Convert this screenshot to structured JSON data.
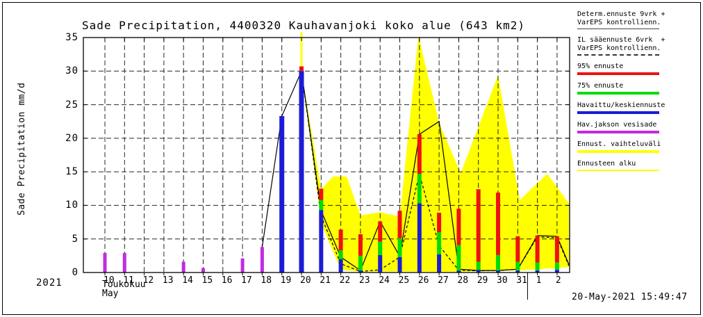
{
  "page": {
    "timestamp": "20-May-2021 15:49:47"
  },
  "colors": {
    "red_95": "#ee1111",
    "green_75": "#00dd00",
    "blue_observed": "#1c1cd6",
    "magenta_rain": "#c12ce0",
    "yellow_range": "#ffff00",
    "line_black": "#000000"
  },
  "chart_data": {
    "type": "composite: bar + line + area (hydrological precipitation forecast)",
    "title": "Sade Precipitation, 4400320 Kauhavanjoki koko alue (643 km2)",
    "ylabel": "Sade Precipitation mm/d",
    "ylim": [
      0,
      35
    ],
    "yticks": [
      0,
      5,
      10,
      15,
      20,
      25,
      30,
      35
    ],
    "grid": "dashed, every day vertical / every 5 mm horizontal",
    "x": {
      "year": "2021",
      "month_fi": "Toukokuu",
      "month_en": "May",
      "day_labels": [
        "10",
        "11",
        "12",
        "13",
        "14",
        "15",
        "16",
        "17",
        "18",
        "19",
        "20",
        "21",
        "22",
        "23",
        "24",
        "25",
        "26",
        "27",
        "28",
        "29",
        "30",
        "31",
        "1",
        "2"
      ],
      "note": "days 10-31 May 2021 then 1-2 June; month separator after 31"
    },
    "series": {
      "observed_rain_magenta_bars": [
        {
          "day": 10,
          "value": 2.9
        },
        {
          "day": 11,
          "value": 2.9
        },
        {
          "day": 14,
          "value": 1.6
        },
        {
          "day": 15,
          "value": 0.65
        },
        {
          "day": 17,
          "value": 2.1
        },
        {
          "day": 18,
          "value": 3.8
        }
      ],
      "observed_mean_blue_bars": [
        {
          "day": 19,
          "value": 23.3
        },
        {
          "day": 20,
          "value": 30.0
        }
      ],
      "forecast_start_cap": {
        "day": 20,
        "from": 30.0,
        "to": 30.7
      },
      "quantile_bars": [
        {
          "day": 21,
          "blue": 9.3,
          "green": 10.8,
          "red": 12.5
        },
        {
          "day": 22,
          "blue": 2.0,
          "green": 3.3,
          "red": 6.4
        },
        {
          "day": 23,
          "blue": 0.3,
          "green": 2.5,
          "red": 5.7
        },
        {
          "day": 24,
          "blue": 2.6,
          "green": 4.6,
          "red": 7.6
        },
        {
          "day": 25,
          "blue": 2.3,
          "green": 5.1,
          "red": 9.2
        },
        {
          "day": 26,
          "blue": 10.3,
          "green": 14.7,
          "red": 20.6
        },
        {
          "day": 27,
          "blue": 2.7,
          "green": 6.0,
          "red": 8.9
        },
        {
          "day": 28,
          "blue": 0.3,
          "green": 4.1,
          "red": 9.5
        },
        {
          "day": 29,
          "blue": 0.4,
          "green": 1.6,
          "red": 12.4
        },
        {
          "day": 30,
          "blue": 0.3,
          "green": 2.6,
          "red": 11.9
        },
        {
          "day": 31,
          "blue": 0.3,
          "green": 1.6,
          "red": 5.4
        },
        {
          "day": 32,
          "blue": 0.3,
          "green": 1.5,
          "red": 5.5
        },
        {
          "day": 33,
          "blue": 0.4,
          "green": 1.5,
          "red": 5.4
        }
      ],
      "range_area": {
        "upper": [
          [
            20,
            30
          ],
          [
            21,
            12.4
          ],
          [
            21.6,
            14.3
          ],
          [
            22.3,
            14.3
          ],
          [
            23,
            8.5
          ],
          [
            24,
            9.0
          ],
          [
            25,
            8.3
          ],
          [
            25.95,
            35.3
          ],
          [
            27,
            22.3
          ],
          [
            28.1,
            14.8
          ],
          [
            30,
            29.4
          ],
          [
            31.1,
            10.8
          ],
          [
            32.5,
            14.7
          ],
          [
            33.6,
            10.3
          ]
        ],
        "lower": [
          [
            20,
            30
          ],
          [
            21,
            7.4
          ],
          [
            22,
            0.4
          ],
          [
            23,
            0.15
          ],
          [
            25,
            0.15
          ],
          [
            28,
            0.1
          ],
          [
            31,
            0.3
          ],
          [
            33.6,
            0.8
          ]
        ]
      },
      "det_line": [
        [
          18,
          3.8
        ],
        [
          19,
          23.3
        ],
        [
          20,
          30
        ],
        [
          21,
          9.2
        ],
        [
          22,
          2.3
        ],
        [
          23,
          0.3
        ],
        [
          24,
          7.6
        ],
        [
          25,
          2.4
        ],
        [
          26,
          20.6
        ],
        [
          27,
          22.5
        ],
        [
          28,
          0.5
        ],
        [
          29,
          0.3
        ],
        [
          30,
          0.3
        ],
        [
          31,
          0.5
        ],
        [
          32,
          5.5
        ],
        [
          33,
          5.4
        ],
        [
          33.6,
          1.2
        ]
      ],
      "il_line": [
        [
          20,
          30
        ],
        [
          21,
          8.4
        ],
        [
          22,
          1.3
        ],
        [
          23,
          0.15
        ],
        [
          24,
          0.4
        ],
        [
          25,
          2.3
        ],
        [
          26,
          14.7
        ],
        [
          27,
          4.0
        ],
        [
          28,
          0.35
        ],
        [
          29,
          0.25
        ],
        [
          30,
          0.3
        ],
        [
          31,
          0.5
        ],
        [
          32,
          5.3
        ],
        [
          33,
          5.2
        ],
        [
          33.6,
          1.0
        ]
      ],
      "forecast_start_day": 20,
      "month_separator_day": 31.5
    }
  },
  "legend": {
    "items": [
      {
        "lines": [
          "Determ.ennuste 9vrk +",
          "VarEPS kontrollienn."
        ],
        "swatch": "solid-thin",
        "color": "#444444"
      },
      {
        "lines": [
          "IL sääennuste 6vrk  +",
          "VarEPS kontrollienn."
        ],
        "swatch": "dashed-thin",
        "color": "#333333"
      },
      {
        "lines": [
          "95% ennuste"
        ],
        "swatch": "thick",
        "color": "#ee1111"
      },
      {
        "lines": [
          "75% ennuste"
        ],
        "swatch": "thick",
        "color": "#00dd00"
      },
      {
        "lines": [
          "Havaittu/keskiennuste"
        ],
        "swatch": "thick",
        "color": "#1c1cd6"
      },
      {
        "lines": [
          "Hav.jakson vesisade"
        ],
        "swatch": "thick",
        "color": "#c12ce0"
      },
      {
        "lines": [
          "Ennust. vaihteluväli"
        ],
        "swatch": "thick",
        "color": "#ffff00"
      },
      {
        "lines": [
          "Ennusteen alku"
        ],
        "swatch": "thin",
        "color": "#ffff00"
      }
    ]
  }
}
